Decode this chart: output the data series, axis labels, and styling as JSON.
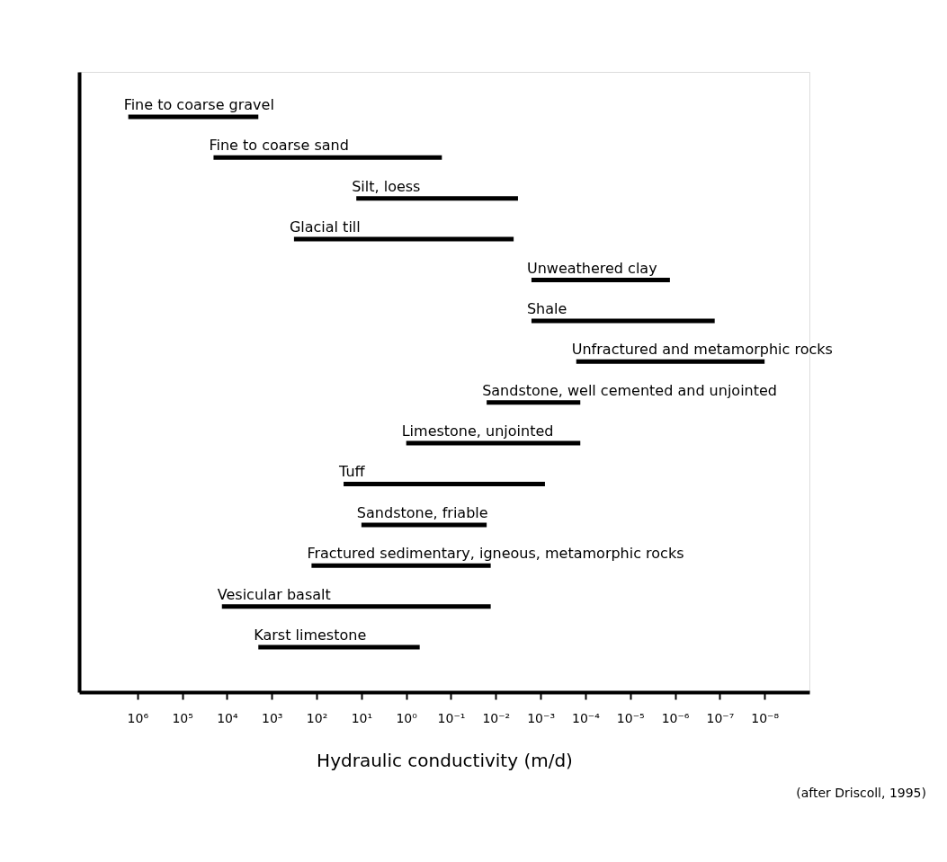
{
  "chart_data": {
    "type": "bar",
    "orientation": "horizontal",
    "categories": [
      "Fine to coarse gravel",
      "Fine to coarse sand",
      "Silt, loess",
      "Glacial till",
      "Unweathered clay",
      "Shale",
      "Unfractured and metamorphic rocks",
      "Sandstone, well cemented and unjointed",
      "Limestone, unjointed",
      "Tuff",
      "Sandstone, friable",
      "Fractured sedimentary, igneous, metamorphic rocks",
      "Vesicular basalt",
      "Karst limestone"
    ],
    "base": [
      1600000,
      20000,
      13,
      320,
      0.0016,
      0.0016,
      0.00016,
      0.016,
      1,
      25,
      10,
      130,
      13000,
      2000
    ],
    "values": [
      -1598000,
      -19999.84,
      -12.9968,
      -319.996,
      -0.0015987,
      -0.00159987,
      -0.00015999,
      -0.01587,
      -0.99987,
      -24.9992,
      -9.984,
      -129.987,
      -12999.987,
      -1999.5
    ],
    "color": "#000000",
    "log": "x",
    "xlim": [
      20000000,
      1e-09
    ],
    "xticks": [
      {
        "value": 1000000,
        "label": "10⁶"
      },
      {
        "value": 100000,
        "label": "10⁵"
      },
      {
        "value": 10000,
        "label": "10⁴"
      },
      {
        "value": 1000,
        "label": "10³"
      },
      {
        "value": 100,
        "label": "10²"
      },
      {
        "value": 10,
        "label": "10¹"
      },
      {
        "value": 1,
        "label": "10⁰"
      },
      {
        "value": 0.1,
        "label": "10⁻¹"
      },
      {
        "value": 0.01,
        "label": "10⁻²"
      },
      {
        "value": 0.001,
        "label": "10⁻³"
      },
      {
        "value": 0.0001,
        "label": "10⁻⁴"
      },
      {
        "value": 1e-05,
        "label": "10⁻⁵"
      },
      {
        "value": 1e-06,
        "label": "10⁻⁶"
      },
      {
        "value": 1e-07,
        "label": "10⁻⁷"
      },
      {
        "value": 1e-08,
        "label": "10⁻⁸"
      }
    ],
    "xlabel": "Hydraulic conductivity (m/d)",
    "annotations": [
      "(after Driscoll, 1995)"
    ],
    "tick_labels": "x",
    "grid": false
  }
}
